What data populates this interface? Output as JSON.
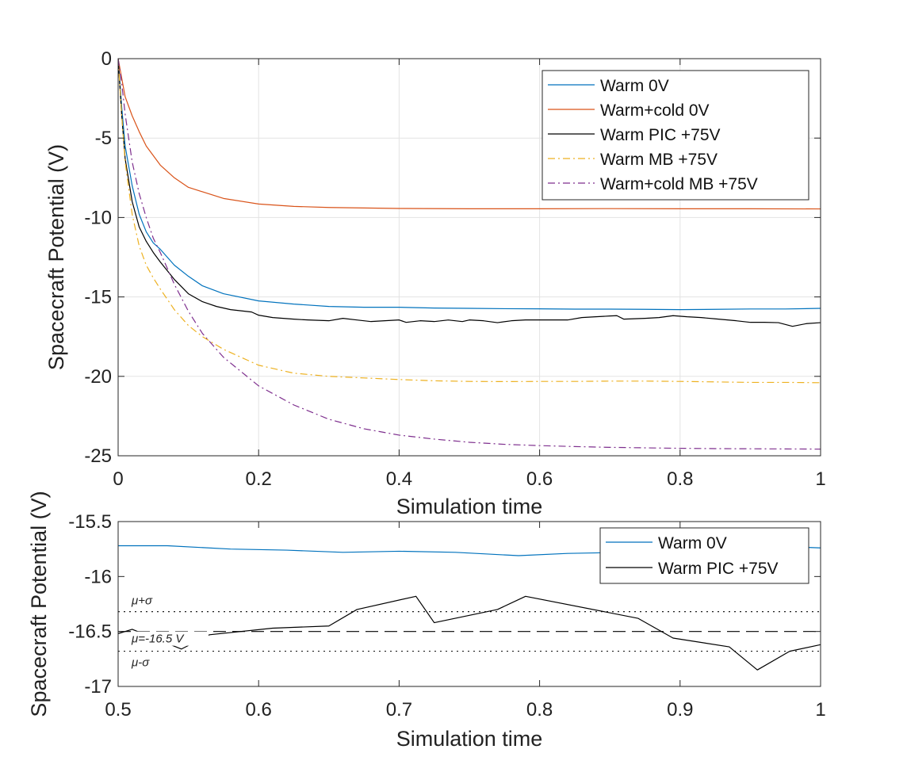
{
  "chart_data": [
    {
      "type": "line",
      "panel": "top",
      "title": "",
      "xlabel": "Simulation time",
      "ylabel": "Spacecraft Potential (V)",
      "xlim": [
        0,
        1
      ],
      "ylim": [
        -25,
        0
      ],
      "xticks": [
        0,
        0.2,
        0.4,
        0.6,
        0.8,
        1
      ],
      "xtick_labels": [
        "0",
        "0.2",
        "0.4",
        "0.6",
        "0.8",
        "1"
      ],
      "yticks": [
        0,
        -5,
        -10,
        -15,
        -20,
        -25
      ],
      "ytick_labels": [
        "0",
        "-5",
        "-10",
        "-15",
        "-20",
        "-25"
      ],
      "grid": true,
      "legend_position": "top-right",
      "series": [
        {
          "name": "Warm 0V",
          "color": "#0072BD",
          "style": "solid",
          "x": [
            0,
            0.005,
            0.01,
            0.02,
            0.03,
            0.04,
            0.05,
            0.06,
            0.08,
            0.1,
            0.12,
            0.15,
            0.2,
            0.25,
            0.3,
            0.35,
            0.4,
            0.45,
            0.5,
            0.55,
            0.6,
            0.65,
            0.7,
            0.75,
            0.8,
            0.85,
            0.9,
            0.95,
            1.0
          ],
          "y": [
            0,
            -3.0,
            -5.5,
            -8.0,
            -9.8,
            -10.9,
            -11.6,
            -12.0,
            -13.0,
            -13.7,
            -14.3,
            -14.8,
            -15.25,
            -15.45,
            -15.6,
            -15.65,
            -15.65,
            -15.7,
            -15.72,
            -15.74,
            -15.75,
            -15.77,
            -15.77,
            -15.78,
            -15.8,
            -15.78,
            -15.76,
            -15.76,
            -15.72
          ]
        },
        {
          "name": "Warm+cold 0V",
          "color": "#D95319",
          "style": "solid",
          "x": [
            0,
            0.01,
            0.02,
            0.03,
            0.04,
            0.06,
            0.08,
            0.1,
            0.15,
            0.2,
            0.25,
            0.3,
            0.35,
            0.4,
            0.5,
            0.6,
            0.7,
            0.8,
            0.9,
            1.0
          ],
          "y": [
            0,
            -2.4,
            -3.6,
            -4.6,
            -5.5,
            -6.7,
            -7.5,
            -8.1,
            -8.8,
            -9.15,
            -9.3,
            -9.37,
            -9.4,
            -9.43,
            -9.45,
            -9.45,
            -9.44,
            -9.45,
            -9.45,
            -9.46
          ]
        },
        {
          "name": "Warm PIC +75V",
          "color": "#000000",
          "style": "solid",
          "x": [
            0,
            0.005,
            0.01,
            0.02,
            0.03,
            0.04,
            0.05,
            0.06,
            0.08,
            0.1,
            0.12,
            0.14,
            0.16,
            0.18,
            0.19,
            0.2,
            0.22,
            0.25,
            0.27,
            0.3,
            0.32,
            0.34,
            0.36,
            0.38,
            0.4,
            0.41,
            0.43,
            0.45,
            0.47,
            0.49,
            0.5,
            0.52,
            0.54,
            0.56,
            0.58,
            0.6,
            0.62,
            0.64,
            0.66,
            0.68,
            0.7,
            0.71,
            0.72,
            0.75,
            0.77,
            0.79,
            0.81,
            0.83,
            0.85,
            0.88,
            0.9,
            0.92,
            0.94,
            0.96,
            0.98,
            1.0
          ],
          "y": [
            0,
            -3.5,
            -6.3,
            -9.0,
            -10.6,
            -11.5,
            -12.2,
            -12.8,
            -13.9,
            -14.8,
            -15.3,
            -15.6,
            -15.8,
            -15.9,
            -15.95,
            -16.15,
            -16.3,
            -16.4,
            -16.45,
            -16.5,
            -16.35,
            -16.45,
            -16.55,
            -16.5,
            -16.45,
            -16.6,
            -16.5,
            -16.55,
            -16.45,
            -16.55,
            -16.45,
            -16.5,
            -16.62,
            -16.5,
            -16.45,
            -16.45,
            -16.45,
            -16.45,
            -16.3,
            -16.25,
            -16.2,
            -16.18,
            -16.4,
            -16.35,
            -16.3,
            -16.18,
            -16.25,
            -16.3,
            -16.38,
            -16.5,
            -16.6,
            -16.6,
            -16.62,
            -16.85,
            -16.68,
            -16.62
          ]
        },
        {
          "name": "Warm MB +75V",
          "color": "#EDB120",
          "style": "dashdot",
          "x": [
            0,
            0.005,
            0.01,
            0.02,
            0.03,
            0.04,
            0.05,
            0.06,
            0.08,
            0.1,
            0.12,
            0.15,
            0.2,
            0.25,
            0.3,
            0.35,
            0.4,
            0.45,
            0.5,
            0.55,
            0.6,
            0.65,
            0.7,
            0.75,
            0.8,
            0.85,
            0.9,
            0.95,
            1.0
          ],
          "y": [
            0,
            -3.5,
            -6.5,
            -9.8,
            -11.8,
            -13.0,
            -13.8,
            -14.5,
            -15.8,
            -16.8,
            -17.5,
            -18.3,
            -19.3,
            -19.8,
            -20.0,
            -20.1,
            -20.2,
            -20.28,
            -20.32,
            -20.33,
            -20.32,
            -20.32,
            -20.3,
            -20.3,
            -20.32,
            -20.35,
            -20.38,
            -20.38,
            -20.4
          ]
        },
        {
          "name": "Warm+cold  MB +75V",
          "color": "#7E2F8E",
          "style": "dashdot",
          "x": [
            0,
            0.005,
            0.01,
            0.02,
            0.03,
            0.04,
            0.05,
            0.06,
            0.08,
            0.1,
            0.12,
            0.15,
            0.2,
            0.25,
            0.3,
            0.35,
            0.4,
            0.45,
            0.5,
            0.55,
            0.6,
            0.65,
            0.7,
            0.75,
            0.8,
            0.85,
            0.9,
            0.95,
            1.0
          ],
          "y": [
            0,
            -1.5,
            -3.5,
            -6.5,
            -8.5,
            -10.0,
            -11.3,
            -12.2,
            -14.2,
            -15.9,
            -17.3,
            -18.8,
            -20.6,
            -21.8,
            -22.7,
            -23.3,
            -23.7,
            -23.95,
            -24.15,
            -24.28,
            -24.36,
            -24.42,
            -24.47,
            -24.5,
            -24.53,
            -24.55,
            -24.56,
            -24.57,
            -24.58
          ]
        }
      ]
    },
    {
      "type": "line",
      "panel": "bottom",
      "title": "",
      "xlabel": "Simulation time",
      "ylabel": "Spacecraft Potential (V)",
      "xlim": [
        0.5,
        1
      ],
      "ylim": [
        -17,
        -15.5
      ],
      "xticks": [
        0.5,
        0.6,
        0.7,
        0.8,
        0.9,
        1
      ],
      "xtick_labels": [
        "0.5",
        "0.6",
        "0.7",
        "0.8",
        "0.9",
        "1"
      ],
      "yticks": [
        -15.5,
        -16,
        -16.5,
        -17
      ],
      "ytick_labels": [
        "-15.5",
        "-16",
        "-16.5",
        "-17"
      ],
      "grid": false,
      "legend_position": "top-right",
      "series": [
        {
          "name": "Warm 0V",
          "color": "#0072BD",
          "style": "solid",
          "x": [
            0.5,
            0.535,
            0.58,
            0.62,
            0.66,
            0.7,
            0.74,
            0.785,
            0.82,
            0.86,
            0.9,
            0.94,
            0.98,
            1.0
          ],
          "y": [
            -15.72,
            -15.72,
            -15.75,
            -15.76,
            -15.78,
            -15.77,
            -15.78,
            -15.81,
            -15.79,
            -15.78,
            -15.76,
            -15.75,
            -15.73,
            -15.74
          ]
        },
        {
          "name": "Warm PIC +75V",
          "color": "#000000",
          "style": "solid",
          "x": [
            0.5,
            0.51,
            0.545,
            0.565,
            0.61,
            0.65,
            0.67,
            0.712,
            0.725,
            0.77,
            0.79,
            0.87,
            0.895,
            0.935,
            0.955,
            0.978,
            1.0
          ],
          "y": [
            -16.52,
            -16.48,
            -16.66,
            -16.53,
            -16.47,
            -16.45,
            -16.3,
            -16.18,
            -16.42,
            -16.3,
            -16.18,
            -16.38,
            -16.56,
            -16.64,
            -16.85,
            -16.68,
            -16.62
          ]
        }
      ],
      "reference_lines": [
        {
          "name": "mean",
          "value": -16.5,
          "style": "dashed",
          "label": "μ=-16.5 V"
        },
        {
          "name": "mean-plus-sigma",
          "value": -16.32,
          "style": "dotted",
          "label": "μ+σ"
        },
        {
          "name": "mean-minus-sigma",
          "value": -16.68,
          "style": "dotted",
          "label": "μ-σ"
        }
      ]
    }
  ]
}
